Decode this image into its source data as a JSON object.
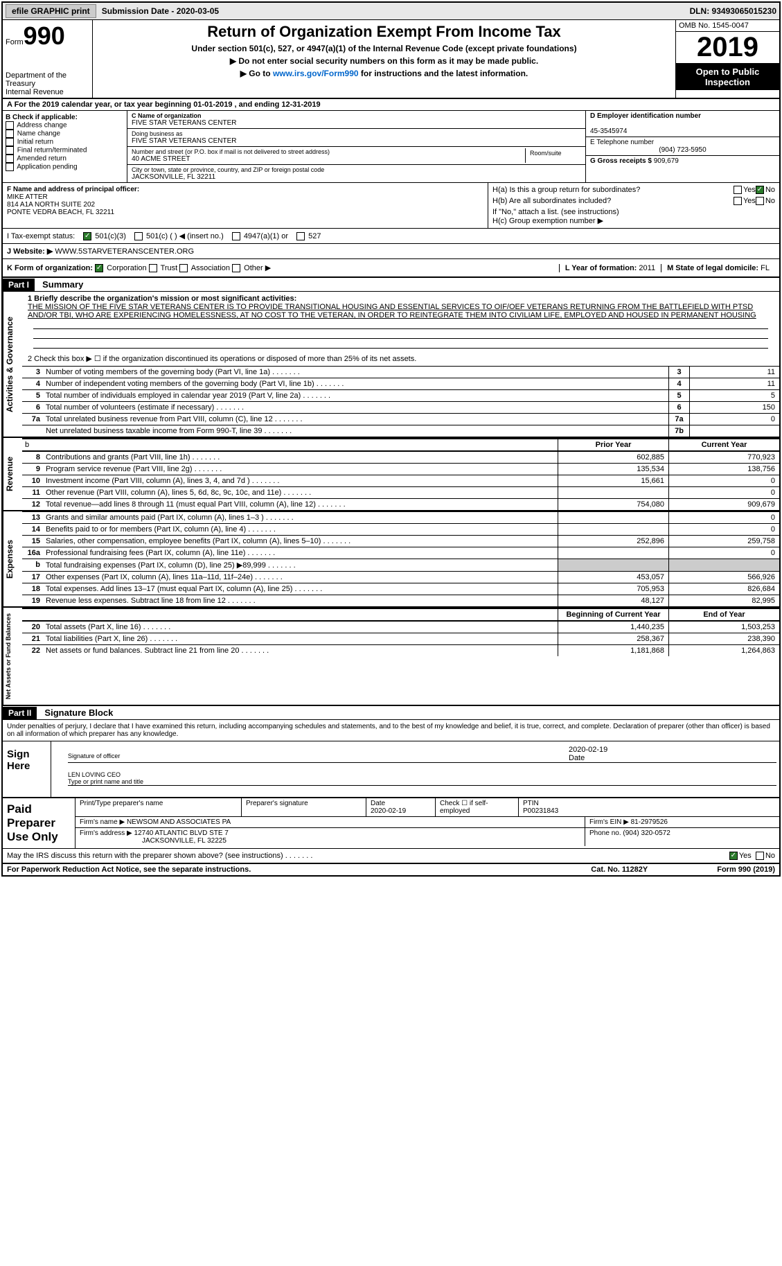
{
  "header": {
    "efile": "efile GRAPHIC print",
    "submission": "Submission Date - 2020-03-05",
    "dln": "DLN: 93493065015230"
  },
  "form_title": {
    "form_label": "Form",
    "form_num": "990",
    "dept1": "Department of the Treasury",
    "dept2": "Internal Revenue",
    "main": "Return of Organization Exempt From Income Tax",
    "sub": "Under section 501(c), 527, or 4947(a)(1) of the Internal Revenue Code (except private foundations)",
    "instr1": "▶ Do not enter social security numbers on this form as it may be made public.",
    "instr2_pre": "▶ Go to ",
    "instr2_link": "www.irs.gov/Form990",
    "instr2_post": " for instructions and the latest information.",
    "omb": "OMB No. 1545-0047",
    "year": "2019",
    "open": "Open to Public Inspection"
  },
  "line_a": "A For the 2019 calendar year, or tax year beginning 01-01-2019    , and ending 12-31-2019",
  "section_b": {
    "b_label": "B Check if applicable:",
    "b_items": [
      "Address change",
      "Name change",
      "Initial return",
      "Final return/terminated",
      "Amended return",
      "Application pending"
    ],
    "c_name_label": "C Name of organization",
    "c_name": "FIVE STAR VETERANS CENTER",
    "dba_label": "Doing business as",
    "dba": "FIVE STAR VETERANS CENTER",
    "addr_label": "Number and street (or P.O. box if mail is not delivered to street address)",
    "addr": "40 ACME STREET",
    "room_label": "Room/suite",
    "city_label": "City or town, state or province, country, and ZIP or foreign postal code",
    "city": "JACKSONVILLE, FL  32211",
    "d_label": "D Employer identification number",
    "d_val": "45-3545974",
    "e_label": "E Telephone number",
    "e_val": "(904) 723-5950",
    "g_label": "G Gross receipts $",
    "g_val": "909,679"
  },
  "section_fh": {
    "f_label": "F Name and address of principal officer:",
    "f_name": "MIKE ATTER",
    "f_addr1": "814 A1A NORTH SUITE 202",
    "f_addr2": "PONTE VEDRA BEACH, FL  32211",
    "ha_label": "H(a)  Is this a group return for subordinates?",
    "hb_label": "H(b)  Are all subordinates included?",
    "hb_note": "If \"No,\" attach a list. (see instructions)",
    "hc_label": "H(c)  Group exemption number ▶",
    "yes": "Yes",
    "no": "No"
  },
  "tax_status": {
    "i_label": "I    Tax-exempt status:",
    "opt1": "501(c)(3)",
    "opt2": "501(c) (  ) ◀ (insert no.)",
    "opt3": "4947(a)(1) or",
    "opt4": "527"
  },
  "website": {
    "j_label": "J    Website: ▶",
    "j_val": "WWW.5STARVETERANSCENTER.ORG"
  },
  "k_row": {
    "k_label": "K Form of organization:",
    "opts": [
      "Corporation",
      "Trust",
      "Association",
      "Other ▶"
    ],
    "l_label": "L Year of formation:",
    "l_val": "2011",
    "m_label": "M State of legal domicile:",
    "m_val": "FL"
  },
  "part1": {
    "header": "Part I",
    "title": "Summary",
    "vtab1": "Activities & Governance",
    "vtab2": "Revenue",
    "vtab3": "Expenses",
    "vtab4": "Net Assets or Fund Balances",
    "q1_label": "1  Briefly describe the organization's mission or most significant activities:",
    "q1_text": "THE MISSION OF THE FIVE STAR VETERANS CENTER IS TO PROVIDE TRANSITIONAL HOUSING AND ESSENTIAL SERVICES TO OIF/OEF VETERANS RETURNING FROM THE BATTLEFIELD WITH PTSD AND/OR TBI, WHO ARE EXPERIENCING HOMELESSNESS, AT NO COST TO THE VETERAN, IN ORDER TO REINTEGRATE THEM INTO CIVILIAM LIFE, EMPLOYED AND HOUSED IN PERMANENT HOUSING",
    "q2": "2   Check this box ▶ ☐  if the organization discontinued its operations or disposed of more than 25% of its net assets.",
    "rows": [
      {
        "n": "3",
        "label": "Number of voting members of the governing body (Part VI, line 1a)",
        "box": "3",
        "val": "11"
      },
      {
        "n": "4",
        "label": "Number of independent voting members of the governing body (Part VI, line 1b)",
        "box": "4",
        "val": "11"
      },
      {
        "n": "5",
        "label": "Total number of individuals employed in calendar year 2019 (Part V, line 2a)",
        "box": "5",
        "val": "5"
      },
      {
        "n": "6",
        "label": "Total number of volunteers (estimate if necessary)",
        "box": "6",
        "val": "150"
      },
      {
        "n": "7a",
        "label": "Total unrelated business revenue from Part VIII, column (C), line 12",
        "box": "7a",
        "val": "0"
      },
      {
        "n": "",
        "label": "Net unrelated business taxable income from Form 990-T, line 39",
        "box": "7b",
        "val": ""
      }
    ],
    "th_prior": "Prior Year",
    "th_curr": "Current Year",
    "rev_rows": [
      {
        "n": "8",
        "label": "Contributions and grants (Part VIII, line 1h)",
        "prior": "602,885",
        "curr": "770,923"
      },
      {
        "n": "9",
        "label": "Program service revenue (Part VIII, line 2g)",
        "prior": "135,534",
        "curr": "138,756"
      },
      {
        "n": "10",
        "label": "Investment income (Part VIII, column (A), lines 3, 4, and 7d )",
        "prior": "15,661",
        "curr": "0"
      },
      {
        "n": "11",
        "label": "Other revenue (Part VIII, column (A), lines 5, 6d, 8c, 9c, 10c, and 11e)",
        "prior": "",
        "curr": "0"
      },
      {
        "n": "12",
        "label": "Total revenue—add lines 8 through 11 (must equal Part VIII, column (A), line 12)",
        "prior": "754,080",
        "curr": "909,679"
      }
    ],
    "exp_rows": [
      {
        "n": "13",
        "label": "Grants and similar amounts paid (Part IX, column (A), lines 1–3 )",
        "prior": "",
        "curr": "0"
      },
      {
        "n": "14",
        "label": "Benefits paid to or for members (Part IX, column (A), line 4)",
        "prior": "",
        "curr": "0"
      },
      {
        "n": "15",
        "label": "Salaries, other compensation, employee benefits (Part IX, column (A), lines 5–10)",
        "prior": "252,896",
        "curr": "259,758"
      },
      {
        "n": "16a",
        "label": "Professional fundraising fees (Part IX, column (A), line 11e)",
        "prior": "",
        "curr": "0"
      },
      {
        "n": "b",
        "label": "Total fundraising expenses (Part IX, column (D), line 25) ▶89,999",
        "prior": "grey",
        "curr": "grey"
      },
      {
        "n": "17",
        "label": "Other expenses (Part IX, column (A), lines 11a–11d, 11f–24e)",
        "prior": "453,057",
        "curr": "566,926"
      },
      {
        "n": "18",
        "label": "Total expenses. Add lines 13–17 (must equal Part IX, column (A), line 25)",
        "prior": "705,953",
        "curr": "826,684"
      },
      {
        "n": "19",
        "label": "Revenue less expenses. Subtract line 18 from line 12",
        "prior": "48,127",
        "curr": "82,995"
      }
    ],
    "th_begin": "Beginning of Current Year",
    "th_end": "End of Year",
    "net_rows": [
      {
        "n": "20",
        "label": "Total assets (Part X, line 16)",
        "prior": "1,440,235",
        "curr": "1,503,253"
      },
      {
        "n": "21",
        "label": "Total liabilities (Part X, line 26)",
        "prior": "258,367",
        "curr": "238,390"
      },
      {
        "n": "22",
        "label": "Net assets or fund balances. Subtract line 21 from line 20",
        "prior": "1,181,868",
        "curr": "1,264,863"
      }
    ]
  },
  "part2": {
    "header": "Part II",
    "title": "Signature Block",
    "decl": "Under penalties of perjury, I declare that I have examined this return, including accompanying schedules and statements, and to the best of my knowledge and belief, it is true, correct, and complete. Declaration of preparer (other than officer) is based on all information of which preparer has any knowledge.",
    "sign_here": "Sign Here",
    "sig_officer": "Signature of officer",
    "sig_date": "2020-02-19",
    "date_label": "Date",
    "name_title": "LEN LOVING  CEO",
    "name_label": "Type or print name and title",
    "paid_prep": "Paid Preparer Use Only",
    "prep_name_label": "Print/Type preparer's name",
    "prep_sig_label": "Preparer's signature",
    "prep_date_label": "Date",
    "prep_date": "2020-02-19",
    "check_label": "Check ☐ if self-employed",
    "ptin_label": "PTIN",
    "ptin": "P00231843",
    "firm_name_label": "Firm's name    ▶",
    "firm_name": "NEWSOM AND ASSOCIATES PA",
    "firm_ein_label": "Firm's EIN ▶",
    "firm_ein": "81-2979526",
    "firm_addr_label": "Firm's address ▶",
    "firm_addr1": "12740 ATLANTIC BLVD STE 7",
    "firm_addr2": "JACKSONVILLE, FL  32225",
    "phone_label": "Phone no.",
    "phone": "(904) 320-0572",
    "discuss": "May the IRS discuss this return with the preparer shown above? (see instructions)",
    "yes": "Yes",
    "no": "No"
  },
  "footer": {
    "left": "For Paperwork Reduction Act Notice, see the separate instructions.",
    "mid": "Cat. No. 11282Y",
    "right": "Form 990 (2019)"
  }
}
